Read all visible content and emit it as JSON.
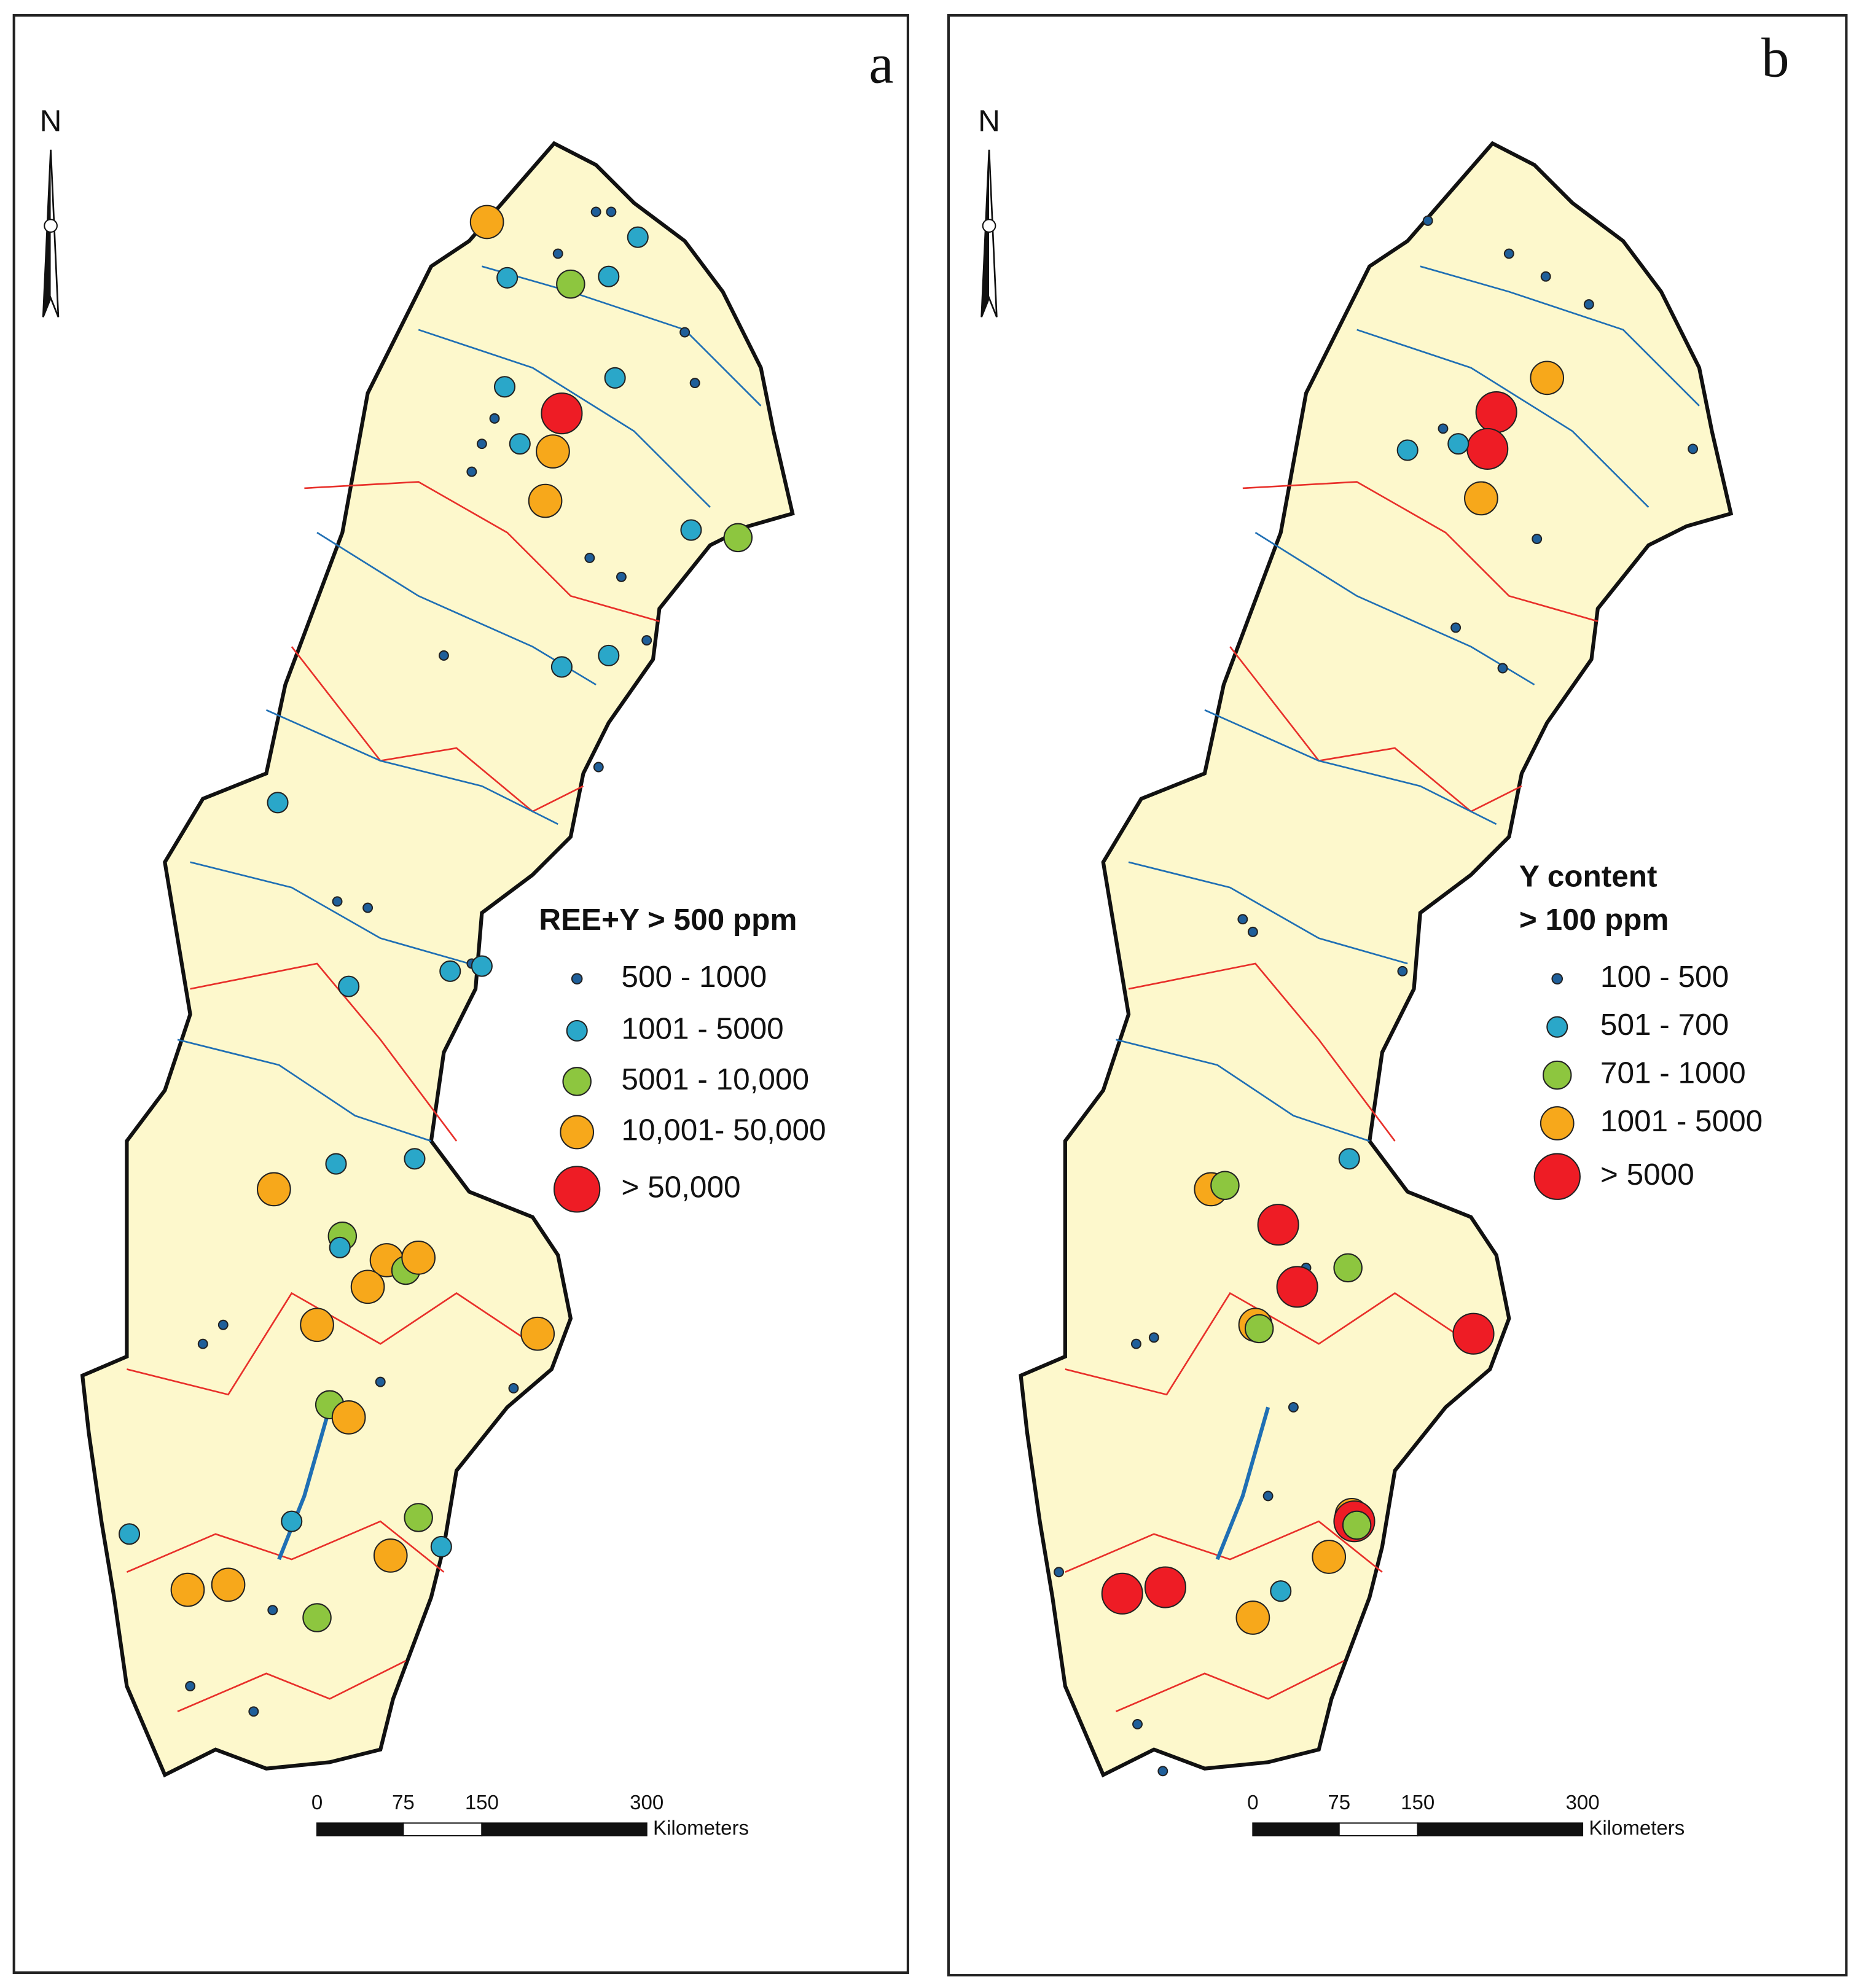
{
  "panels": [
    {
      "label": "a",
      "north": "N",
      "legend": {
        "title_lines": [
          "REE+Y > 500 ppm"
        ],
        "items": [
          "500 - 1000",
          "1001 - 5000",
          "5001 - 10,000",
          "10,001- 50,000",
          "> 50,000"
        ]
      },
      "scale": {
        "ticks": [
          "0",
          "75",
          "150",
          "300"
        ],
        "unit": "Kilometers"
      }
    },
    {
      "label": "b",
      "north": "N",
      "legend": {
        "title_lines": [
          "Y content",
          "> 100 ppm"
        ],
        "items": [
          "100 - 500",
          "501 - 700",
          "701 - 1000",
          "1001 - 5000",
          "> 5000"
        ]
      },
      "scale": {
        "ticks": [
          "0",
          "75",
          "150",
          "300"
        ],
        "unit": "Kilometers"
      }
    }
  ]
}
